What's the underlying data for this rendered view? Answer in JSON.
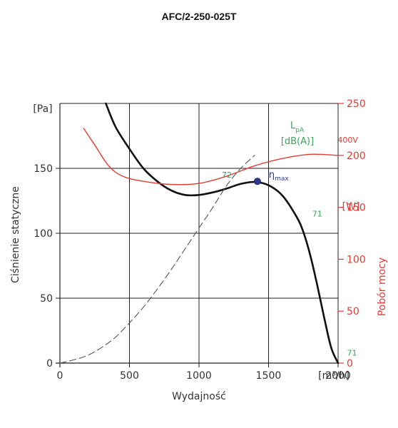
{
  "chart_data": {
    "type": "line",
    "title": "AFC/2-250-025T",
    "xlabel": "Wydajność",
    "x_unit": "[m³/h]",
    "xlim": [
      0,
      2000
    ],
    "x_ticks": [
      "0",
      "500",
      "1000",
      "1500",
      "2000"
    ],
    "ylabel": "Ciśnienie statyczne",
    "y_unit": "[Pa]",
    "ylim": [
      0,
      200
    ],
    "y_ticks": [
      "0",
      "50",
      "100",
      "150"
    ],
    "y2label": "Pobór mocy",
    "y2_unit": "[W]",
    "y2lim": [
      0,
      250
    ],
    "y2_ticks": [
      "0",
      "50",
      "100",
      "150",
      "200",
      "250"
    ],
    "grid": true,
    "lpa_label": {
      "main": "L",
      "sub": "pA",
      "unit": "[dB(A)]"
    },
    "series": [
      {
        "id": "pressure",
        "axis": "left",
        "color": "#111111",
        "style": "solid",
        "x": [
          330,
          400,
          500,
          600,
          700,
          800,
          900,
          1000,
          1100,
          1200,
          1300,
          1400,
          1500,
          1600,
          1700,
          1750,
          1800,
          1850,
          1900,
          1950,
          2000
        ],
        "y": [
          200,
          182,
          165,
          150,
          140,
          133,
          129.5,
          129.5,
          131.5,
          134.5,
          138,
          139.5,
          137,
          129,
          113,
          101,
          83,
          60,
          35,
          12,
          0
        ]
      },
      {
        "id": "efficiency-max",
        "axis": "left",
        "color": "#555555",
        "style": "dashed",
        "x": [
          0,
          100,
          200,
          300,
          400,
          500,
          600,
          700,
          800,
          900,
          1000,
          1100,
          1200,
          1300,
          1400
        ],
        "y": [
          0,
          2.5,
          6,
          12,
          20,
          31,
          43,
          57,
          72,
          88,
          104,
          120,
          137,
          150,
          160
        ]
      },
      {
        "id": "power",
        "name": "400V",
        "axis": "right",
        "color": "#e53935",
        "style": "solid",
        "x": [
          170,
          250,
          350,
          450,
          600,
          800,
          1000,
          1200,
          1400,
          1600,
          1800,
          2000
        ],
        "y": [
          226,
          210,
          190,
          180,
          175,
          172,
          173,
          180,
          190,
          197,
          201,
          200
        ]
      }
    ],
    "eta_max": {
      "label": "η",
      "sub": "max",
      "x": 1420,
      "y": 140,
      "color": "#2e3a8c"
    },
    "noise_annotations": [
      {
        "text": "72",
        "x": 1200,
        "y": 145
      },
      {
        "text": "71",
        "x": 1850,
        "y": 115
      },
      {
        "text": "71",
        "x": 2100,
        "y": 8
      }
    ],
    "series_labels": [
      {
        "text": "400V",
        "x": 2070,
        "y2": 215
      }
    ]
  }
}
